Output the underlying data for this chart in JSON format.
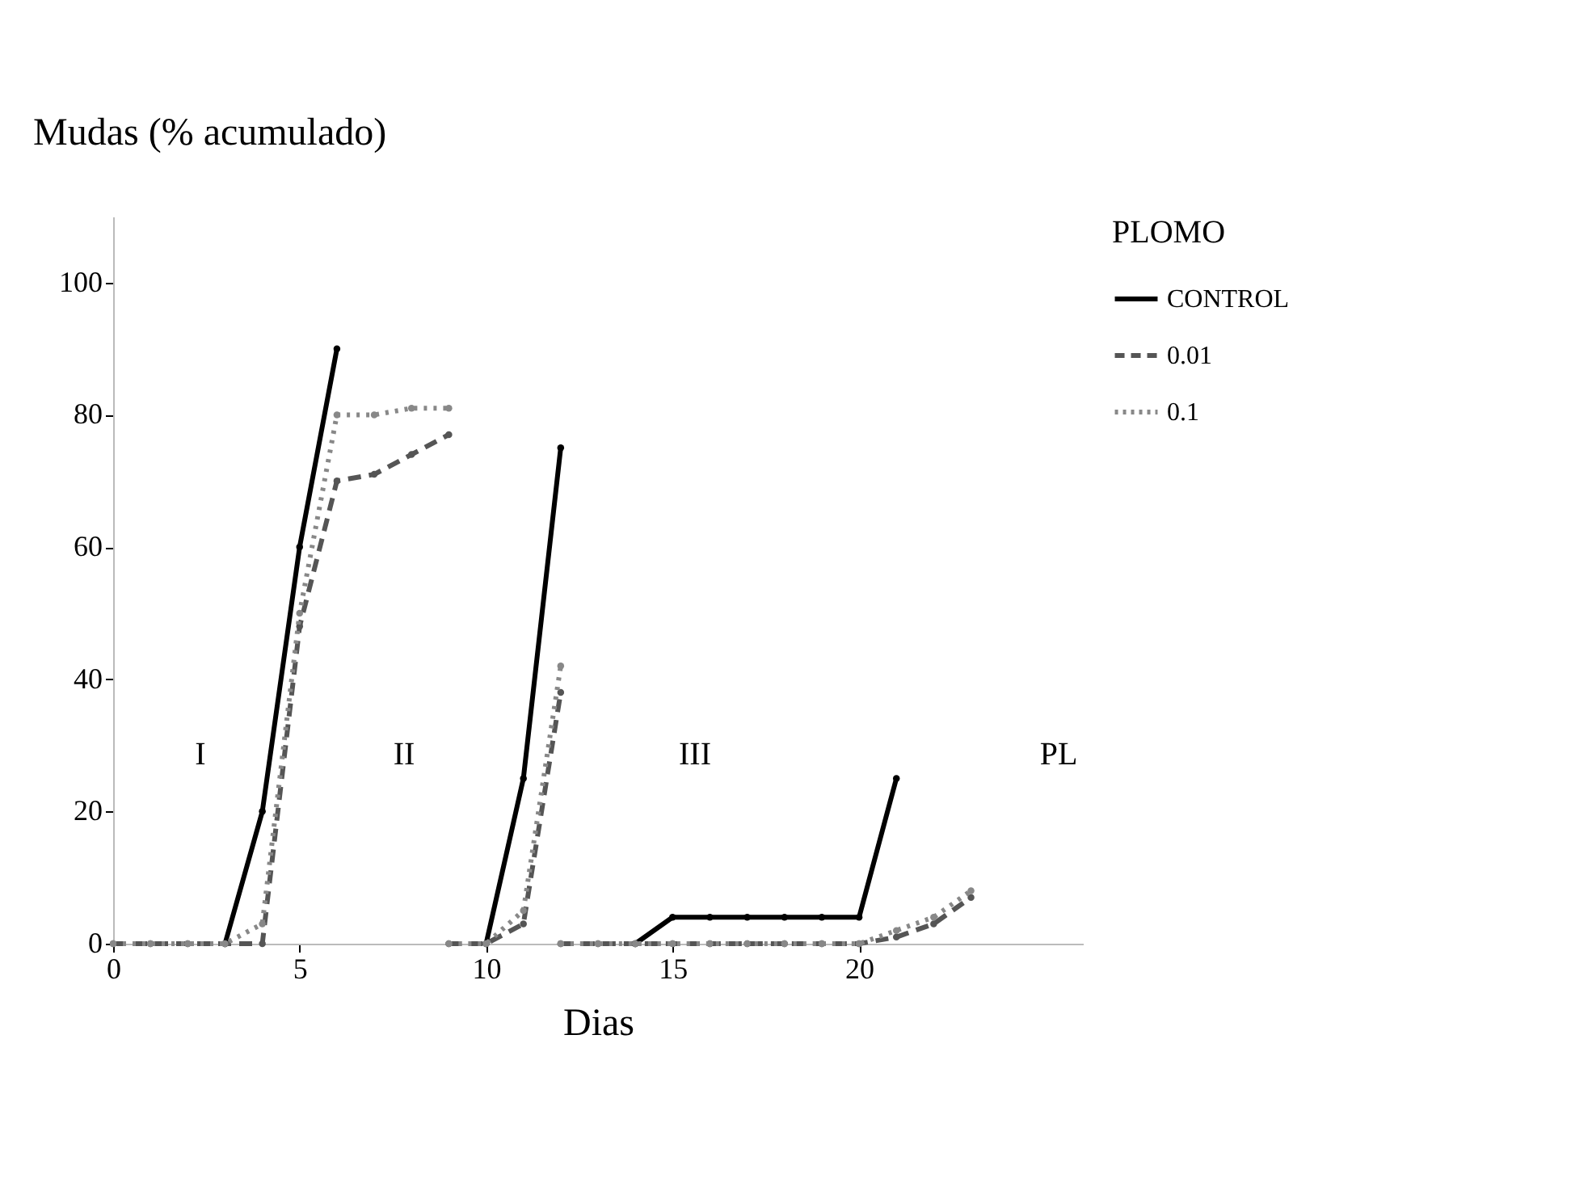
{
  "chart_data": {
    "type": "line",
    "ylabel": "Mudas (% acumulado)",
    "xlabel": "Dias",
    "legend_title": "PLOMO",
    "legend": "top right",
    "marker": "circle",
    "grid": false,
    "xlim": [
      0,
      26
    ],
    "xticks": [
      0,
      5,
      10,
      15,
      20
    ],
    "ylim": [
      0,
      110
    ],
    "yticks": [
      0,
      20,
      40,
      60,
      80,
      100
    ],
    "series": [
      {
        "name": "CONTROL",
        "color": "#000000",
        "line_style": "solid",
        "x": [
          3,
          4,
          5,
          6
        ],
        "values": [
          0,
          20,
          60,
          90
        ]
      },
      {
        "name": "0.01",
        "color": "#555555",
        "line_style": "dashed",
        "x": [
          0,
          1,
          2,
          3,
          4,
          5,
          6,
          7,
          8,
          9
        ],
        "values": [
          0,
          0,
          0,
          0,
          0,
          48,
          70,
          71,
          74,
          77
        ]
      },
      {
        "name": "0.1",
        "color": "#888888",
        "line_style": "dotted",
        "x": [
          0,
          1,
          2,
          3,
          4,
          5,
          6,
          7,
          8,
          9
        ],
        "values": [
          0,
          0,
          0,
          0,
          3,
          50,
          80,
          80,
          81,
          81
        ]
      },
      {
        "color": "#000000",
        "line_style": "solid",
        "x": [
          10,
          11,
          12
        ],
        "values": [
          0,
          25,
          75
        ]
      },
      {
        "color": "#555555",
        "line_style": "dashed",
        "x": [
          9,
          10,
          11,
          12
        ],
        "values": [
          0,
          0,
          3,
          38
        ]
      },
      {
        "color": "#888888",
        "line_style": "dotted",
        "x": [
          9,
          10,
          11,
          12
        ],
        "values": [
          0,
          0,
          5,
          42
        ]
      },
      {
        "color": "#000000",
        "line_style": "solid",
        "x": [
          14,
          15,
          16,
          17,
          18,
          19,
          20,
          21
        ],
        "values": [
          0,
          4,
          4,
          4,
          4,
          4,
          4,
          25
        ]
      },
      {
        "color": "#555555",
        "line_style": "dashed",
        "x": [
          12,
          13,
          14,
          15,
          16,
          17,
          18,
          19,
          20,
          21,
          22,
          23
        ],
        "values": [
          0,
          0,
          0,
          0,
          0,
          0,
          0,
          0,
          0,
          1,
          3,
          7
        ]
      },
      {
        "color": "#888888",
        "line_style": "dotted",
        "x": [
          12,
          13,
          14,
          15,
          16,
          17,
          18,
          19,
          20,
          21,
          22,
          23
        ],
        "values": [
          0,
          0,
          0,
          0,
          0,
          0,
          0,
          0,
          0,
          2,
          4,
          8
        ]
      }
    ],
    "annotations": [
      "I",
      "II",
      "III",
      "PL"
    ]
  }
}
